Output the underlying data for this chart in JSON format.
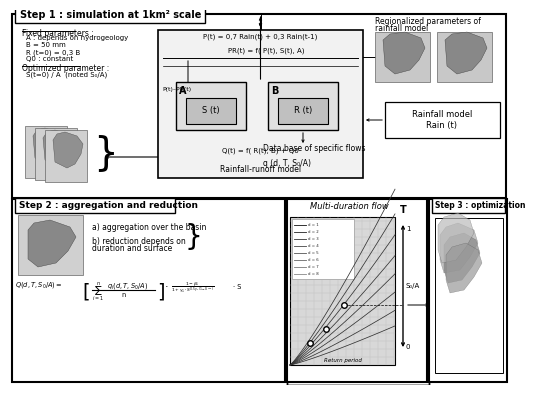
{
  "bg_color": "#ffffff",
  "step1_title": "Step 1 : simulation at 1km² scale",
  "step2_title": "Step 2 : aggregation and reduction",
  "step3_title": "Step 3 : optimization",
  "fixed_params_title": "Fixed parameters :",
  "fixed_params": [
    "A : depends on hydrogeology",
    "B = 50 mm",
    "R (t=0) = 0,3 B",
    "Q0 : constant"
  ],
  "opt_param_title": "Optimized parameter :",
  "opt_param": "S(t=0) / A  (noted S₀/A)",
  "rainfall_box_label": "Rainfall-runoff model",
  "regionalized_line1": "Regionalized parameters of",
  "regionalized_line2": "rainfall model",
  "rainfall_model_label": "Rainfall model\nRain (t)",
  "database_line1": "Data base of specific flows",
  "database_line2": "q (d, T, S₀/A)",
  "eq_P": "P(t) = 0,7 Rain(t) + 0,3 Rain(t-1)",
  "eq_PR": "PR(t) = f( P(t), S(t), A)",
  "eq_P_PR": "P(t)–PR(t)",
  "label_A": "A",
  "label_B": "B",
  "label_St": "S (t)",
  "label_Rt": "R (t)",
  "eq_Q": "Q(t) = f( R(t), B) + Q0",
  "agg_a": "a) aggregation over the basin",
  "agg_b": "b) reduction depends on",
  "agg_b2": "duration and surface",
  "multi_label": "Multi-duration flow",
  "return_period_label": "Return period",
  "axis_T_label": "T",
  "axis_S0A_label": "S₀/A",
  "axis_1": "1",
  "axis_0": "0"
}
